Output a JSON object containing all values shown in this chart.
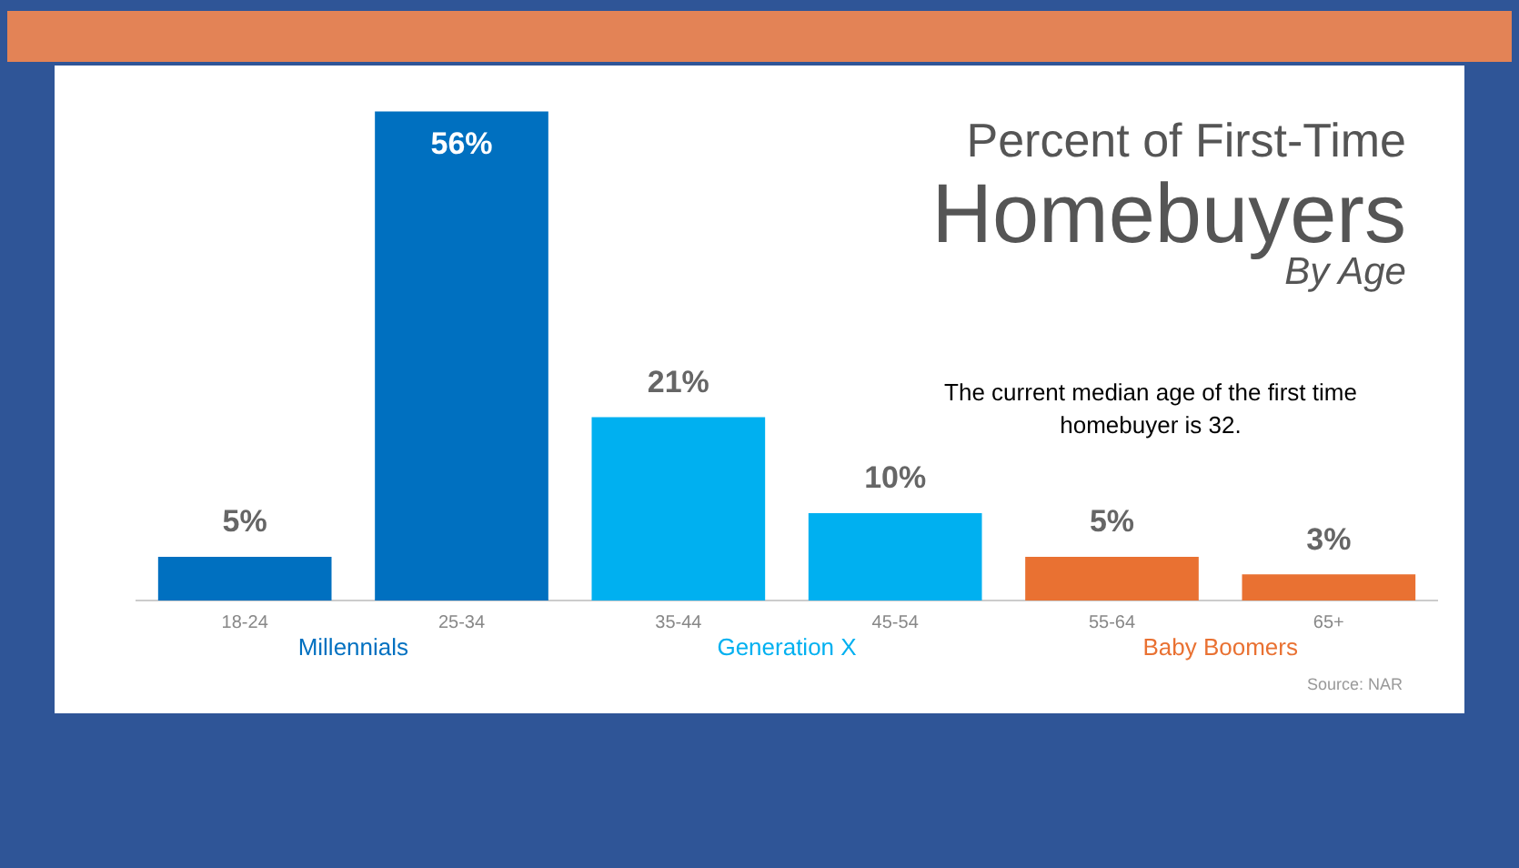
{
  "chart_data": {
    "type": "bar",
    "title": "Percent of First-Time Homebuyers",
    "subtitle": "By Age",
    "categories": [
      "18-24",
      "25-34",
      "35-44",
      "45-54",
      "55-64",
      "65+"
    ],
    "values": [
      5,
      56,
      21,
      10,
      5,
      3
    ],
    "colors": [
      "#0070c0",
      "#0070c0",
      "#00b0f0",
      "#00b0f0",
      "#e97132",
      "#e97132"
    ],
    "data_labels": true,
    "value_labels": [
      "5%",
      "56%",
      "21%",
      "10%",
      "5%",
      "3%"
    ],
    "grid": false,
    "legend": false,
    "annotations": [
      "Millennials",
      "Generation X",
      "Baby Boomers",
      "The current median age of the first time homebuyer is 32.",
      "Source: NAR"
    ]
  }
}
